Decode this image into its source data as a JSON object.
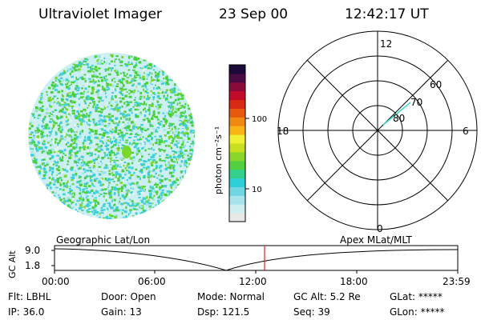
{
  "header": {
    "title": "Ultraviolet Imager",
    "date": "23 Sep 00",
    "time": "12:42:17 UT"
  },
  "colorbar": {
    "label": "photon cm⁻²s⁻¹",
    "tick_100": "100",
    "tick_10": "10",
    "colors": [
      "#e8e8e8",
      "#cfeef0",
      "#a6e3ea",
      "#6fd6e2",
      "#2ecfd6",
      "#32d08a",
      "#52d040",
      "#8bd62a",
      "#c8e020",
      "#f2f032",
      "#f7b516",
      "#f08a12",
      "#e65a10",
      "#d82a14",
      "#c00c28",
      "#8a0a3a",
      "#4a0a44",
      "#1c0a3a"
    ]
  },
  "polar": {
    "mlt_12": "12",
    "mlt_18": "18",
    "mlt_6": "6",
    "mlt_0": "0",
    "lat_60": "60",
    "lat_70": "70",
    "lat_80": "80"
  },
  "timeline": {
    "left_label": "Geographic Lat/Lon",
    "right_label": "Apex MLat/MLT",
    "axis_label": "GC Alt",
    "alt_max": "9.0",
    "alt_min": "1.8",
    "ticks": [
      "00:00",
      "06:00",
      "12:00",
      "18:00",
      "23:59"
    ]
  },
  "info": {
    "flt": "Flt: LBHL",
    "door": "Door: Open",
    "mode": "Mode: Normal",
    "gc_alt": "GC Alt: 5.2 Re",
    "glat": "GLat: *****",
    "ip": "IP: 36.0",
    "gain": "Gain: 13",
    "dsp": "Dsp:  121.5",
    "seq": "Seq: 39",
    "glon": "GLon: *****"
  }
}
